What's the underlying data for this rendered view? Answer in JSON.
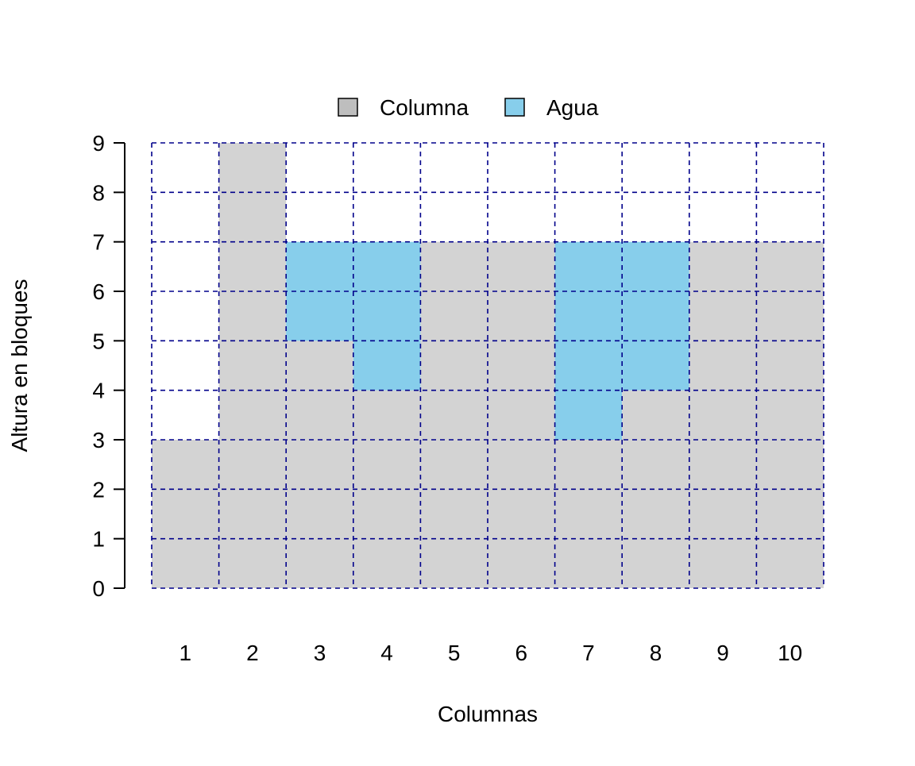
{
  "chart_data": {
    "type": "bar",
    "stacked": true,
    "categories": [
      "1",
      "2",
      "3",
      "4",
      "5",
      "6",
      "7",
      "8",
      "9",
      "10"
    ],
    "series": [
      {
        "name": "Columna",
        "values": [
          3,
          9,
          5,
          4,
          7,
          7,
          3,
          4,
          7,
          7
        ],
        "color": "#D3D3D3",
        "legend_color": "#BEBEBE"
      },
      {
        "name": "Agua",
        "values": [
          0,
          0,
          2,
          3,
          0,
          0,
          4,
          3,
          0,
          0
        ],
        "color": "#87CEEB",
        "legend_color": "#87CEEB"
      }
    ],
    "title": "",
    "xlabel": "Columnas",
    "ylabel": "Altura en bloques",
    "ylim": [
      0,
      9
    ],
    "yticks": [
      "0",
      "1",
      "2",
      "3",
      "4",
      "5",
      "6",
      "7",
      "8",
      "9"
    ],
    "grid": true,
    "grid_color": "#00008B",
    "legend_position": "top"
  }
}
